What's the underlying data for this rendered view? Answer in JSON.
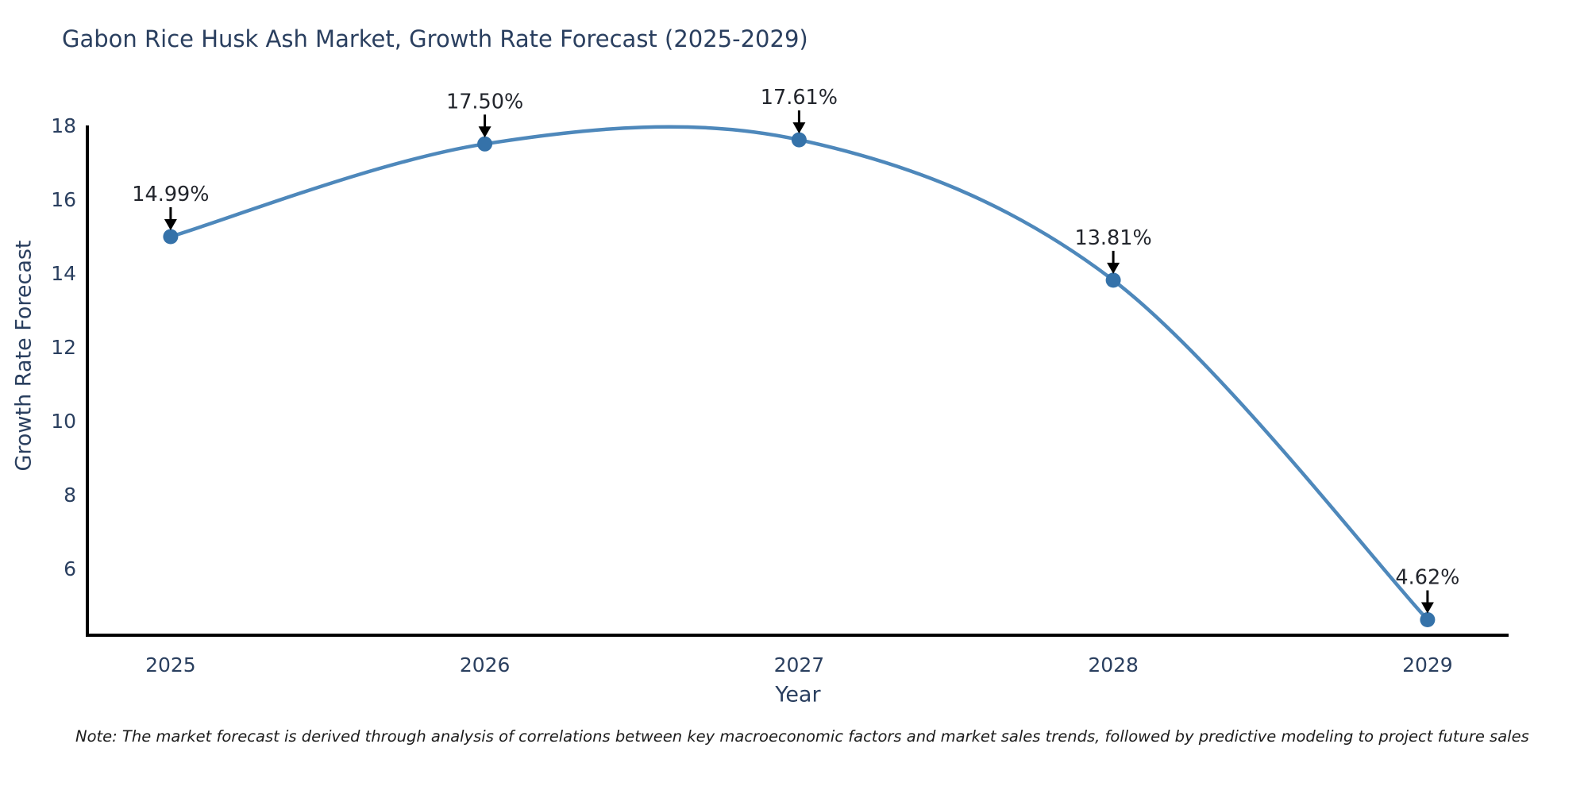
{
  "chart_data": {
    "type": "line",
    "title": "Gabon Rice Husk Ash Market, Growth Rate Forecast (2025-2029)",
    "xlabel": "Year",
    "ylabel": "Growth Rate Forecast",
    "x": [
      2025,
      2026,
      2027,
      2028,
      2029
    ],
    "x_tick_labels": [
      "2025",
      "2026",
      "2027",
      "2028",
      "2029"
    ],
    "series": [
      {
        "name": "Growth Rate Forecast",
        "values": [
          14.99,
          17.5,
          17.61,
          13.81,
          4.62
        ],
        "point_labels": [
          "14.99%",
          "17.50%",
          "17.61%",
          "13.81%",
          "4.62%"
        ]
      }
    ],
    "y_ticks": [
      6,
      8,
      10,
      12,
      14,
      16,
      18
    ],
    "ylim": [
      4.2,
      18.0
    ],
    "xlim": [
      2024.735,
      2029.258
    ],
    "grid": false,
    "legend_position": "none",
    "line_shape": "spline",
    "marker": "circle",
    "annotation_arrows": true,
    "colors": {
      "line": "#4e88bb",
      "marker": "#3572a9",
      "axis": "#000000",
      "tick_text": "#2a3f5f",
      "title_text": "#2a3f5f",
      "annotation_text": "#22252c",
      "arrow": "#000000",
      "background": "#ffffff"
    }
  },
  "footnote": {
    "text": "Note: The market forecast is derived through analysis of correlations between key macroeconomic factors and market sales trends, followed by predictive modeling to project future sales"
  }
}
